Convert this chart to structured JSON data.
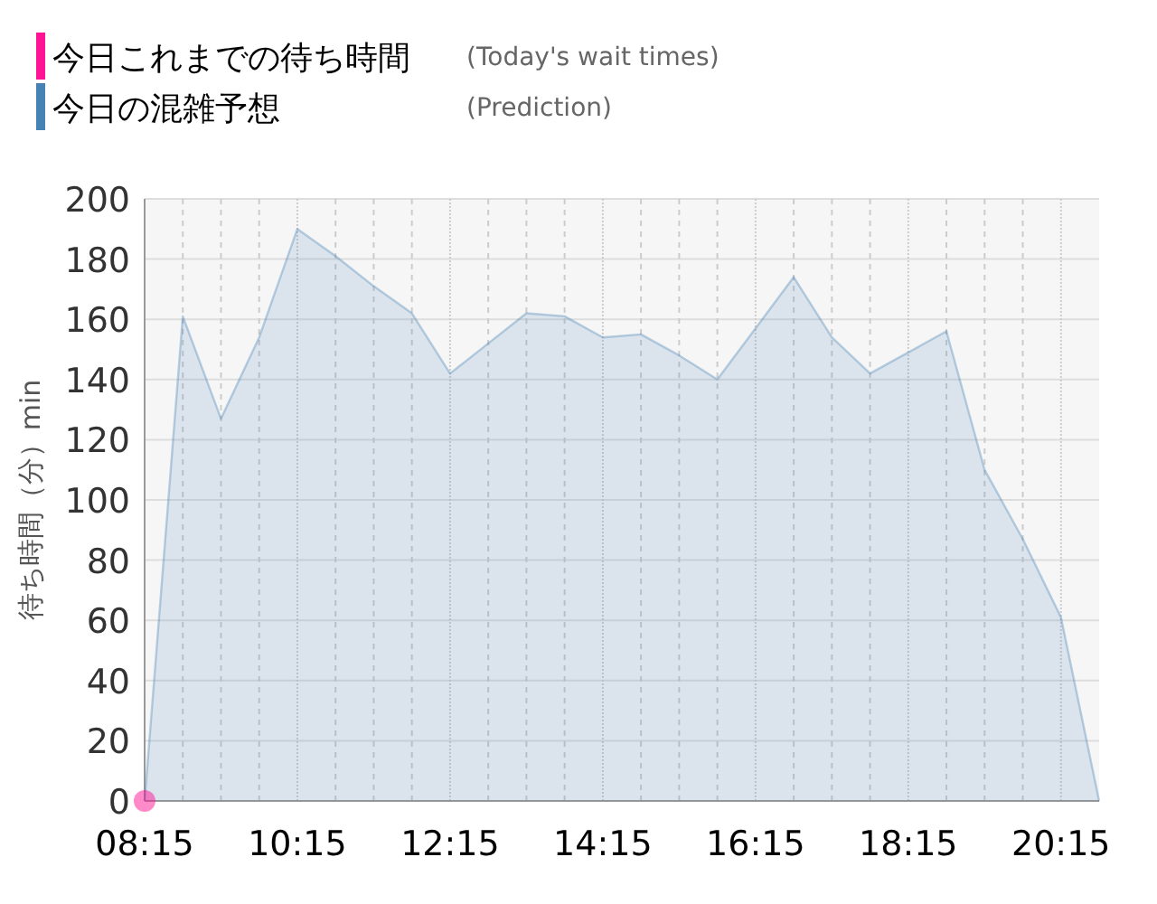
{
  "chart_data": {
    "type": "area",
    "ylabel": "待ち時間（分）min",
    "xlim": [
      8.25,
      20.75
    ],
    "ylim": [
      0,
      200
    ],
    "xticks": [
      {
        "value": 8.25,
        "label": "08:15"
      },
      {
        "value": 8.75,
        "label": null
      },
      {
        "value": 9.25,
        "label": null
      },
      {
        "value": 9.75,
        "label": null
      },
      {
        "value": 10.25,
        "label": "10:15"
      },
      {
        "value": 10.75,
        "label": null
      },
      {
        "value": 11.25,
        "label": null
      },
      {
        "value": 11.75,
        "label": null
      },
      {
        "value": 12.25,
        "label": "12:15"
      },
      {
        "value": 12.75,
        "label": null
      },
      {
        "value": 13.25,
        "label": null
      },
      {
        "value": 13.75,
        "label": null
      },
      {
        "value": 14.25,
        "label": "14:15"
      },
      {
        "value": 14.75,
        "label": null
      },
      {
        "value": 15.25,
        "label": null
      },
      {
        "value": 15.75,
        "label": null
      },
      {
        "value": 16.25,
        "label": "16:15"
      },
      {
        "value": 16.75,
        "label": null
      },
      {
        "value": 17.25,
        "label": null
      },
      {
        "value": 17.75,
        "label": null
      },
      {
        "value": 18.25,
        "label": "18:15"
      },
      {
        "value": 18.75,
        "label": null
      },
      {
        "value": 19.25,
        "label": null
      },
      {
        "value": 19.75,
        "label": null
      },
      {
        "value": 20.25,
        "label": "20:15"
      }
    ],
    "yticks": [
      0,
      20,
      40,
      60,
      80,
      100,
      120,
      140,
      160,
      180,
      200
    ],
    "grid": true,
    "legend": "top left",
    "annotations": [
      "(Today's wait times)",
      "(Prediction)"
    ],
    "series": [
      {
        "name": "今日これまでの待ち時間",
        "type": "scatter",
        "color": "#ff1493",
        "x": [
          8.25
        ],
        "values": [
          0
        ]
      },
      {
        "name": "今日の混雑予想",
        "color": "#4682b4",
        "x": [
          8.25,
          8.75,
          9.25,
          9.75,
          10.25,
          10.75,
          11.25,
          11.75,
          12.25,
          12.75,
          13.25,
          13.75,
          14.25,
          14.75,
          15.25,
          15.75,
          16.25,
          16.75,
          17.25,
          17.75,
          18.25,
          18.75,
          19.25,
          19.75,
          20.25,
          20.75
        ],
        "values": [
          0,
          161,
          127,
          154,
          190,
          181,
          171,
          162,
          142,
          152,
          162,
          161,
          154,
          155,
          148,
          140,
          157,
          174,
          154,
          142,
          149,
          156,
          110,
          87,
          61,
          0
        ]
      }
    ]
  }
}
